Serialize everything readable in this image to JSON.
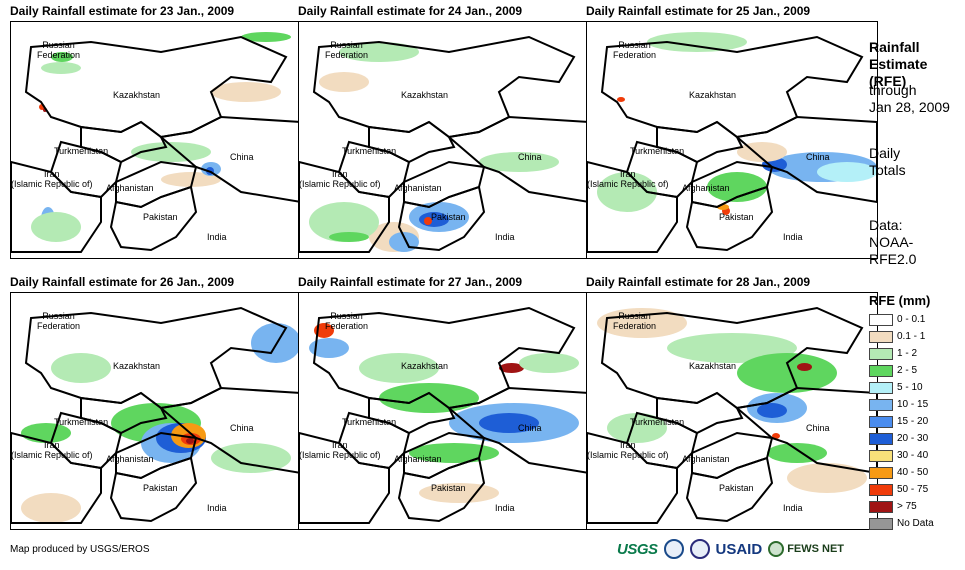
{
  "panels": [
    {
      "title": "Daily Rainfall estimate for 23 Jan., 2009",
      "variant": 0
    },
    {
      "title": "Daily Rainfall estimate for 24 Jan., 2009",
      "variant": 1
    },
    {
      "title": "Daily Rainfall estimate for 25 Jan., 2009",
      "variant": 2
    },
    {
      "title": "Daily Rainfall estimate for 26 Jan., 2009",
      "variant": 3
    },
    {
      "title": "Daily Rainfall estimate for 27 Jan., 2009",
      "variant": 4
    },
    {
      "title": "Daily Rainfall estimate for 28 Jan., 2009",
      "variant": 5
    }
  ],
  "labels": {
    "russia": "Russian\nFederation",
    "kazakhstan": "Kazakhstan",
    "turkmenistan": "Turkmenistan",
    "iran": "Iran\n(Islamic Republic of)",
    "afghanistan": "Afghanistan",
    "pakistan": "Pakistan",
    "china": "China",
    "india": "India"
  },
  "side": {
    "title": "Rainfall\nEstimate\n(RFE)",
    "through": "through\nJan 28, 2009",
    "totals": "Daily\nTotals",
    "data": "Data:\nNOAA-\nRFE2.0"
  },
  "legend": {
    "title": "RFE (mm)",
    "items": [
      {
        "label": "0 - 0.1",
        "color": "#ffffff"
      },
      {
        "label": "0.1 - 1",
        "color": "#f2dcc0"
      },
      {
        "label": "1 - 2",
        "color": "#b4eab4"
      },
      {
        "label": "2 - 5",
        "color": "#5fd65f"
      },
      {
        "label": "5 - 10",
        "color": "#b4f0f8"
      },
      {
        "label": "10 - 15",
        "color": "#78b4f0"
      },
      {
        "label": "15 - 20",
        "color": "#4a8cee"
      },
      {
        "label": "20 - 30",
        "color": "#1e5ed6"
      },
      {
        "label": "30 - 40",
        "color": "#f8e07a"
      },
      {
        "label": "40 - 50",
        "color": "#f79a14"
      },
      {
        "label": "50 - 75",
        "color": "#f03c0a"
      },
      {
        "label": "> 75",
        "color": "#a01414"
      },
      {
        "label": "No Data",
        "color": "#969696"
      }
    ]
  },
  "credit": "Map produced by USGS/EROS",
  "logos": {
    "usgs": "USGS",
    "usaid": "USAID",
    "fews": "FEWS NET"
  }
}
